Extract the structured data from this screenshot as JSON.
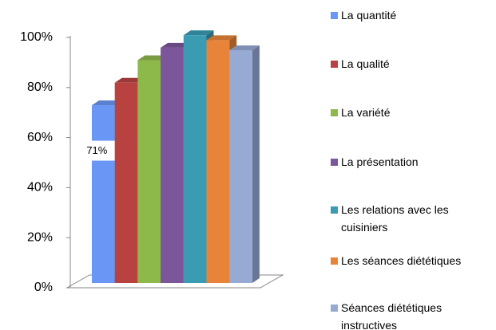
{
  "chart_data": {
    "type": "bar3d",
    "categories": [
      null
    ],
    "series": [
      {
        "name": "La quantité",
        "color": "#6a97f5",
        "values": [
          71
        ],
        "value_labels": [
          "71%"
        ]
      },
      {
        "name": "La qualité",
        "color": "#b8423f",
        "values": [
          80
        ]
      },
      {
        "name": "La variété",
        "color": "#8db84a",
        "values": [
          89
        ]
      },
      {
        "name": "La présentation",
        "color": "#7b569a",
        "values": [
          94
        ]
      },
      {
        "name": "Les relations avec les cuisiniers",
        "color": "#3a9bb2",
        "values": [
          99
        ]
      },
      {
        "name": "Les séances diététiques",
        "color": "#e8843a",
        "values": [
          97
        ]
      },
      {
        "name": "Séances diététiques instructives",
        "color": "#97aad4",
        "values": [
          93
        ]
      }
    ],
    "ylim": [
      0,
      100
    ],
    "yticks": [
      {
        "value": 0,
        "label": "0%"
      },
      {
        "value": 20,
        "label": "20%"
      },
      {
        "value": 40,
        "label": "40%"
      },
      {
        "value": 60,
        "label": "60%"
      },
      {
        "value": 80,
        "label": "80%"
      },
      {
        "value": 100,
        "label": "100%"
      }
    ],
    "legend": "right"
  }
}
